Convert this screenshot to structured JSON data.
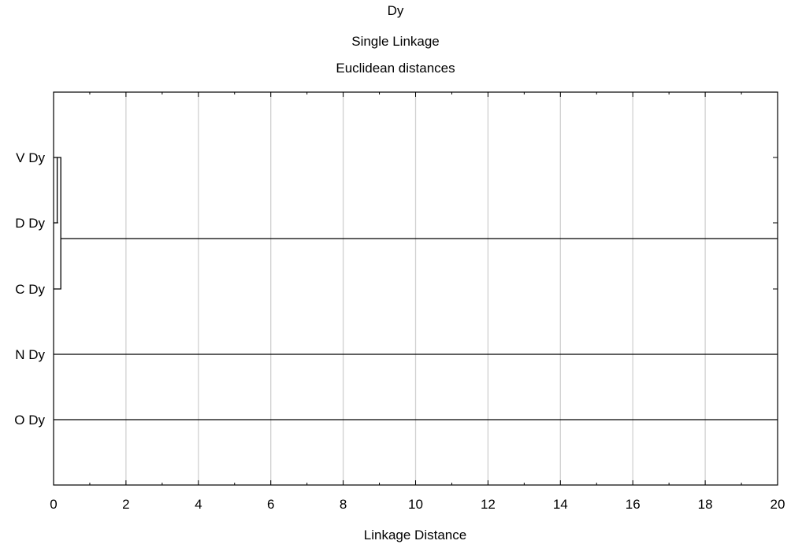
{
  "chart_data": {
    "type": "dendrogram",
    "title": "Dy",
    "subtitle": "Single Linkage",
    "subtitle2": "Euclidean distances",
    "xlabel": "Linkage Distance",
    "ylabel": "",
    "xlim": [
      0,
      20
    ],
    "xticks": [
      "0",
      "2",
      "4",
      "6",
      "8",
      "10",
      "12",
      "14",
      "16",
      "18",
      "20"
    ],
    "leaves": [
      "V Dy",
      "D Dy",
      "C Dy",
      "N Dy",
      "O Dy"
    ],
    "grid": true,
    "merges": [
      {
        "members": [
          "V Dy",
          "D Dy"
        ],
        "distance": 0.1
      },
      {
        "members": [
          "V Dy",
          "D Dy",
          "C Dy"
        ],
        "distance": 0.2
      },
      {
        "members": [
          "V Dy",
          "D Dy",
          "C Dy",
          "N Dy"
        ],
        "distance": 20
      },
      {
        "members": [
          "V Dy",
          "D Dy",
          "C Dy",
          "N Dy",
          "O Dy"
        ],
        "distance": 20
      }
    ]
  }
}
